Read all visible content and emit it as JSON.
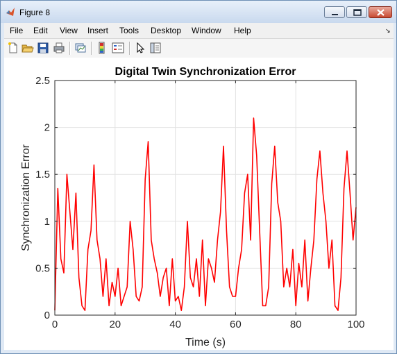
{
  "window": {
    "title": "Figure 8"
  },
  "menu": {
    "items": [
      "File",
      "Edit",
      "View",
      "Insert",
      "Tools",
      "Desktop",
      "Window",
      "Help"
    ]
  },
  "toolbar": {
    "buttons": [
      "new-figure",
      "open-file",
      "save",
      "print",
      "link-plot",
      "insert-colorbar",
      "insert-legend",
      "edit-plot",
      "property-editor"
    ]
  },
  "chart_data": {
    "type": "line",
    "title": "Digital Twin Synchronization Error",
    "xlabel": "Time (s)",
    "ylabel": "Synchronization Error",
    "xlim": [
      0,
      100
    ],
    "ylim": [
      0,
      2.5
    ],
    "xticks": [
      0,
      20,
      40,
      60,
      80,
      100
    ],
    "xtick_labels": [
      "0",
      "20",
      "40",
      "60",
      "80",
      "100"
    ],
    "yticks": [
      0,
      0.5,
      1,
      1.5,
      2,
      2.5
    ],
    "ytick_labels": [
      "0",
      "0.5",
      "1",
      "1.5",
      "2",
      "2.5"
    ],
    "grid": true,
    "series": [
      {
        "color": "#ff0000",
        "x": [
          0,
          1,
          2,
          3,
          4,
          5,
          6,
          7,
          8,
          9,
          10,
          11,
          12,
          13,
          14,
          15,
          16,
          17,
          18,
          19,
          20,
          21,
          22,
          23,
          24,
          25,
          26,
          27,
          28,
          29,
          30,
          31,
          32,
          33,
          34,
          35,
          36,
          37,
          38,
          39,
          40,
          41,
          42,
          43,
          44,
          45,
          46,
          47,
          48,
          49,
          50,
          51,
          52,
          53,
          54,
          55,
          56,
          57,
          58,
          59,
          60,
          61,
          62,
          63,
          64,
          65,
          66,
          67,
          68,
          69,
          70,
          71,
          72,
          73,
          74,
          75,
          76,
          77,
          78,
          79,
          80,
          81,
          82,
          83,
          84,
          85,
          86,
          87,
          88,
          89,
          90,
          91,
          92,
          93,
          94,
          95,
          96,
          97,
          98,
          99,
          100
        ],
        "y": [
          0.05,
          1.35,
          0.6,
          0.45,
          1.5,
          1.1,
          0.7,
          1.3,
          0.4,
          0.1,
          0.05,
          0.7,
          0.9,
          1.6,
          0.8,
          0.6,
          0.2,
          0.6,
          0.1,
          0.35,
          0.2,
          0.5,
          0.1,
          0.2,
          0.3,
          1.0,
          0.7,
          0.2,
          0.15,
          0.3,
          1.45,
          1.85,
          0.8,
          0.6,
          0.45,
          0.2,
          0.4,
          0.5,
          0.1,
          0.6,
          0.15,
          0.2,
          0.05,
          0.3,
          1.0,
          0.4,
          0.3,
          0.6,
          0.2,
          0.8,
          0.1,
          0.6,
          0.5,
          0.35,
          0.8,
          1.1,
          1.8,
          0.9,
          0.3,
          0.2,
          0.2,
          0.5,
          0.7,
          1.3,
          1.5,
          0.8,
          2.1,
          1.7,
          0.9,
          0.1,
          0.1,
          0.3,
          1.4,
          1.8,
          1.2,
          1.0,
          0.3,
          0.5,
          0.3,
          0.7,
          0.1,
          0.55,
          0.3,
          0.8,
          0.15,
          0.5,
          0.8,
          1.45,
          1.75,
          1.3,
          1.0,
          0.5,
          0.8,
          0.1,
          0.05,
          0.4,
          1.35,
          1.75,
          1.3,
          0.8,
          1.15
        ]
      }
    ]
  }
}
